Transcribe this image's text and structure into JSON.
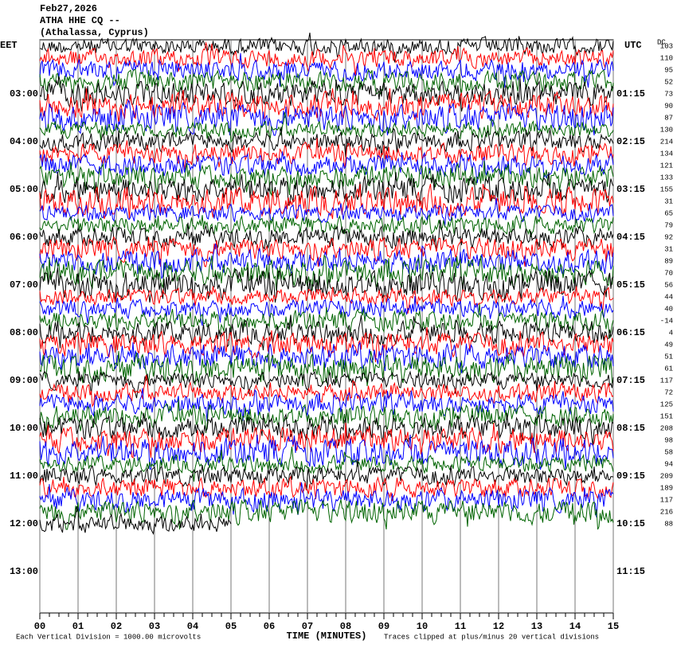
{
  "header": {
    "date": "Feb27,2026",
    "station": "ATHA HHE CQ --",
    "location": "(Athalassa, Cyprus)"
  },
  "left_axis": {
    "zone": "EET",
    "labels": [
      "03:00",
      "04:00",
      "05:00",
      "06:00",
      "07:00",
      "08:00",
      "09:00",
      "10:00",
      "11:00",
      "12:00",
      "13:00"
    ]
  },
  "right_axis": {
    "zone": "UTC",
    "labels": [
      "01:15",
      "02:15",
      "03:15",
      "04:15",
      "05:15",
      "06:15",
      "07:15",
      "08:15",
      "09:15",
      "10:15",
      "11:15"
    ]
  },
  "dc": {
    "title": "DC",
    "values": [
      103,
      110,
      95,
      52,
      73,
      90,
      87,
      130,
      214,
      134,
      121,
      133,
      155,
      31,
      65,
      79,
      92,
      31,
      89,
      70,
      56,
      44,
      40,
      -14,
      4,
      49,
      51,
      61,
      117,
      72,
      125,
      151,
      208,
      98,
      58,
      94,
      209,
      189,
      117,
      216,
      88
    ]
  },
  "x_axis": {
    "labels": [
      "00",
      "01",
      "02",
      "03",
      "04",
      "05",
      "06",
      "07",
      "08",
      "09",
      "10",
      "11",
      "12",
      "13",
      "14",
      "15"
    ],
    "title": "TIME (MINUTES)"
  },
  "footer": {
    "scale": "Each Vertical Division = 1000.00 microvolts",
    "clip": "Traces clipped at plus/minus 20 vertical divisions"
  }
}
